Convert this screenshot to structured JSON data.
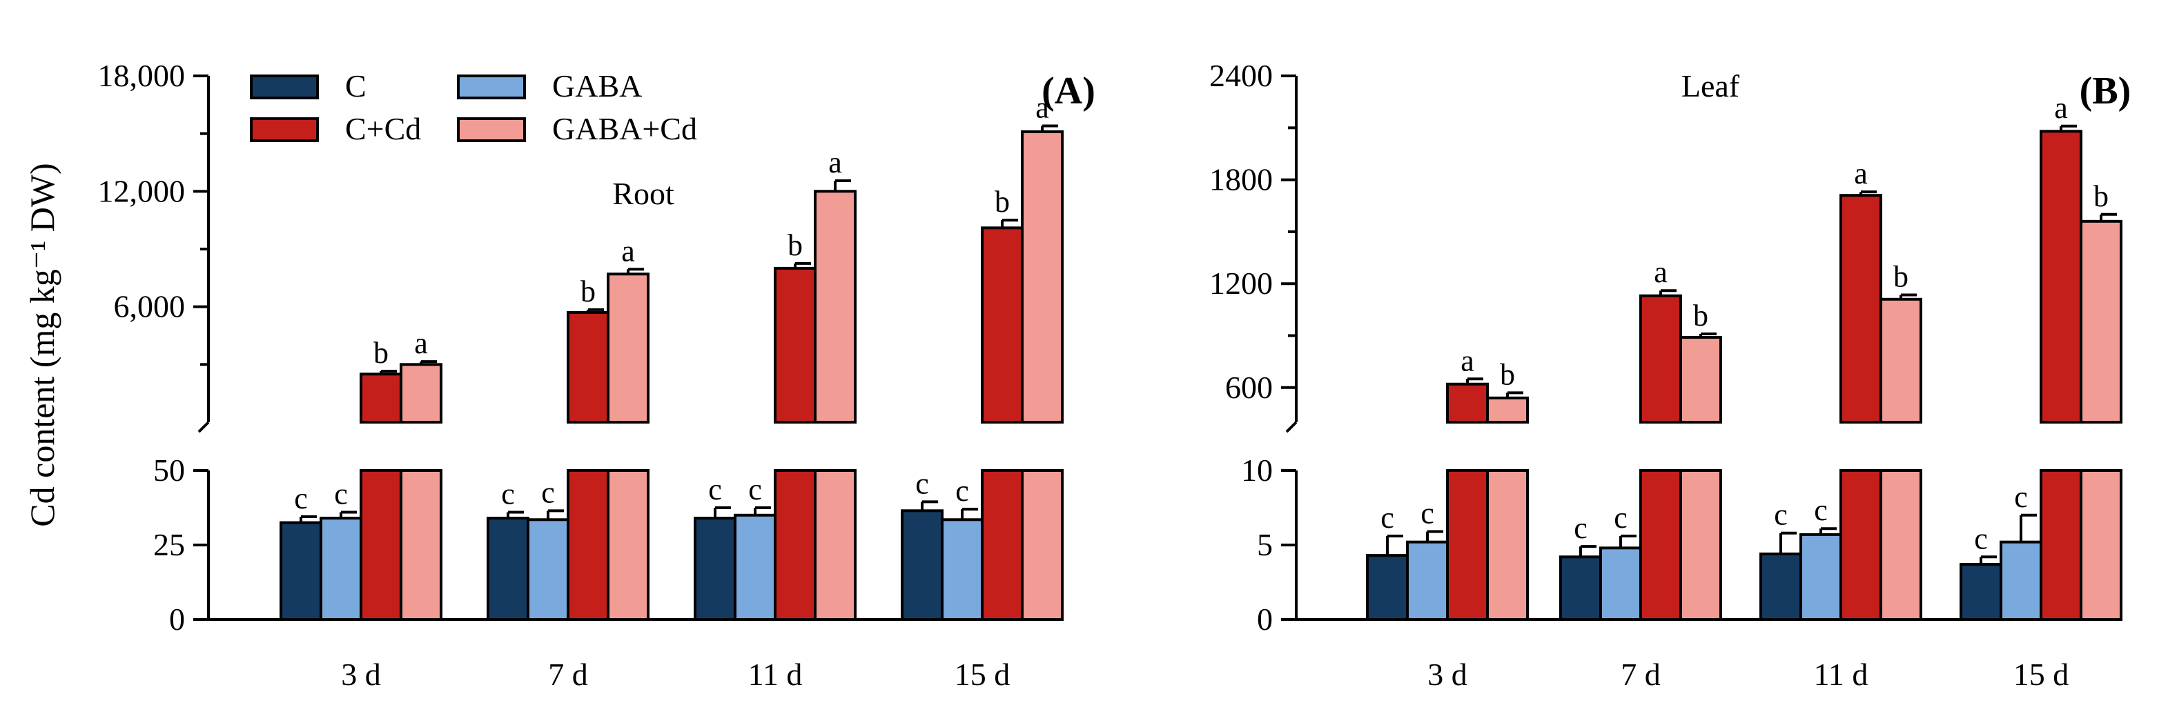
{
  "chart_data": [
    {
      "id": "A",
      "type": "bar",
      "panel_label": "(A)",
      "title": "Root",
      "ylabel": "Cd content (mg kg⁻¹ DW)",
      "categories": [
        "3 d",
        "7 d",
        "11 d",
        "15 d"
      ],
      "broken_axis": {
        "upper": {
          "ylim": [
            0,
            18000
          ],
          "tick_values": [
            6000,
            12000,
            18000
          ],
          "tick_labels": [
            "6,000",
            "12,000",
            "18,000"
          ],
          "axis_floor": 0
        },
        "lower": {
          "ylim": [
            0,
            50
          ],
          "tick_values": [
            0,
            25,
            50
          ],
          "tick_labels": [
            "0",
            "25",
            "50"
          ]
        }
      },
      "series": [
        {
          "name": "C",
          "color": "#153a60",
          "values": [
            32.5,
            34.0,
            34.0,
            36.5
          ],
          "errors": [
            2.0,
            2.0,
            3.5,
            3.0
          ],
          "letters": [
            "c",
            "c",
            "c",
            "c"
          ]
        },
        {
          "name": "GABA",
          "color": "#7aa9dd",
          "values": [
            34.0,
            33.5,
            35.0,
            33.5
          ],
          "errors": [
            2.0,
            3.0,
            2.5,
            3.5
          ],
          "letters": [
            "c",
            "c",
            "c",
            "c"
          ]
        },
        {
          "name": "C+Cd",
          "color": "#c41f1b",
          "values": [
            2500,
            5700,
            8000,
            10100
          ],
          "errors": [
            150,
            150,
            250,
            400
          ],
          "letters": [
            "b",
            "b",
            "b",
            "b"
          ]
        },
        {
          "name": "GABA+Cd",
          "color": "#f29c96",
          "values": [
            3000,
            7700,
            12000,
            15100
          ],
          "errors": [
            150,
            250,
            550,
            300
          ],
          "letters": [
            "a",
            "a",
            "a",
            "a"
          ]
        }
      ],
      "legend": {
        "placement": "top-left",
        "order": [
          "C",
          "GABA",
          "C+Cd",
          "GABA+Cd"
        ]
      }
    },
    {
      "id": "B",
      "type": "bar",
      "panel_label": "(B)",
      "title": "Leaf",
      "ylabel": "",
      "categories": [
        "3 d",
        "7 d",
        "11 d",
        "15 d"
      ],
      "broken_axis": {
        "upper": {
          "ylim": [
            400,
            2400
          ],
          "tick_values": [
            600,
            1200,
            1800,
            2400
          ],
          "tick_labels": [
            "600",
            "1200",
            "1800",
            "2400"
          ],
          "axis_floor": 400
        },
        "lower": {
          "ylim": [
            0,
            10
          ],
          "tick_values": [
            0,
            5,
            10
          ],
          "tick_labels": [
            "0",
            "5",
            "10"
          ]
        }
      },
      "series": [
        {
          "name": "C",
          "color": "#153a60",
          "values": [
            4.3,
            4.2,
            4.4,
            3.7
          ],
          "errors": [
            1.3,
            0.7,
            1.4,
            0.5
          ],
          "letters": [
            "c",
            "c",
            "c",
            "c"
          ]
        },
        {
          "name": "GABA",
          "color": "#7aa9dd",
          "values": [
            5.2,
            4.8,
            5.7,
            5.2
          ],
          "errors": [
            0.7,
            0.8,
            0.4,
            1.8
          ],
          "letters": [
            "c",
            "c",
            "c",
            "c"
          ]
        },
        {
          "name": "C+Cd",
          "color": "#c41f1b",
          "values": [
            620,
            1130,
            1710,
            2080
          ],
          "errors": [
            30,
            30,
            20,
            30
          ],
          "letters": [
            "a",
            "a",
            "a",
            "a"
          ]
        },
        {
          "name": "GABA+Cd",
          "color": "#f29c96",
          "values": [
            540,
            890,
            1110,
            1560
          ],
          "errors": [
            30,
            20,
            25,
            40
          ],
          "letters": [
            "b",
            "b",
            "b",
            "b"
          ]
        }
      ]
    }
  ]
}
